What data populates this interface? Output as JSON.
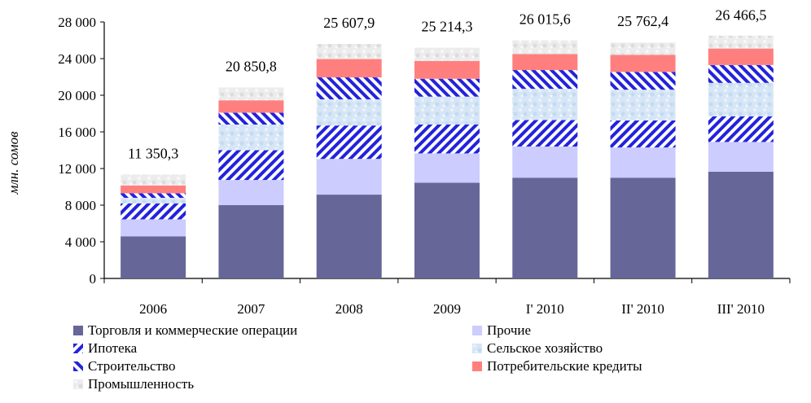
{
  "chart_data": {
    "type": "bar",
    "stacked": true,
    "categories": [
      "2006",
      "2007",
      "2008",
      "2009",
      "I' 2010",
      "II' 2010",
      "III' 2010"
    ],
    "totals_labels": [
      "11 350,3",
      "20 850,8",
      "25 607,9",
      "25 214,3",
      "26 015,6",
      "25 762,4",
      "26 466,5"
    ],
    "totals": [
      11350.3,
      20850.8,
      25607.9,
      25214.3,
      26015.6,
      25762.4,
      26466.5
    ],
    "series": [
      {
        "name": "Торговля и коммерческие операции",
        "color": "#666699",
        "pattern": "solid",
        "values": [
          4600,
          8000,
          9150,
          10450,
          11000,
          11000,
          11650
        ]
      },
      {
        "name": "Прочие",
        "color": "#ccccff",
        "pattern": "solid",
        "values": [
          1850,
          2750,
          3900,
          3200,
          3400,
          3300,
          3250
        ]
      },
      {
        "name": "Ипотека",
        "color": "#2222dd",
        "pattern": "diag-right",
        "values": [
          1750,
          3250,
          3650,
          3150,
          2900,
          2950,
          2800
        ]
      },
      {
        "name": "Сельское хозяйство",
        "color": "#cce0f5",
        "pattern": "texture-blue",
        "values": [
          600,
          2800,
          2850,
          3050,
          3400,
          3350,
          3650
        ]
      },
      {
        "name": "Строительство",
        "color": "#2222dd",
        "pattern": "diag-left",
        "values": [
          500,
          1300,
          2400,
          1950,
          2050,
          1950,
          1950
        ]
      },
      {
        "name": "Потребительские кредиты",
        "color": "#ff7f7f",
        "pattern": "solid",
        "values": [
          850,
          1350,
          2000,
          1950,
          1750,
          1850,
          1800
        ]
      },
      {
        "name": "Промышленность",
        "color": "#e6e6e6",
        "pattern": "texture-gray",
        "values": [
          1200,
          1400,
          1650,
          1450,
          1500,
          1350,
          1400
        ]
      }
    ],
    "ylabel": "млн. сомов",
    "ylim": [
      0,
      28000
    ],
    "yticks": [
      0,
      4000,
      8000,
      12000,
      16000,
      20000,
      24000,
      28000
    ],
    "ytick_labels": [
      "0",
      "4 000",
      "8 000",
      "12 000",
      "16 000",
      "20 000",
      "24 000",
      "28 000"
    ],
    "grid": false,
    "legend_position": "bottom"
  }
}
